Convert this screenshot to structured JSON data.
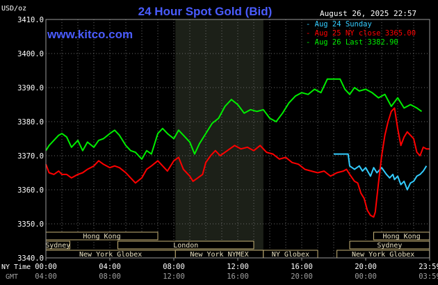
{
  "chart_data": {
    "type": "line",
    "title": "24 Hour Spot Gold (Bid)",
    "source": "www.kitco.com",
    "date_label": "August 26, 2025 22:57",
    "ylabel": "USD/oz",
    "ylim": [
      3340,
      3410
    ],
    "yticks": [
      3340,
      3350,
      3360,
      3370,
      3380,
      3390,
      3400,
      3410
    ],
    "ytick_labels": [
      "3340.0",
      "3350.0",
      "3360.0",
      "3370.0",
      "3380.0",
      "3390.0",
      "3400.0",
      "3410.0"
    ],
    "xlim": [
      0,
      24
    ],
    "xticks": [
      0,
      4,
      8,
      12,
      16,
      20,
      24
    ],
    "xtick_labels_ny": [
      "00:00",
      "04:00",
      "08:00",
      "12:00",
      "16:00",
      "20:00",
      "23:59"
    ],
    "xtick_labels_gmt": [
      "04:00",
      "08:00",
      "12:00",
      "16:00",
      "20:00",
      "00:00",
      "03:59"
    ],
    "xaxis_row_labels": [
      "NY Time",
      "GMT"
    ],
    "grid": true,
    "legend_position": "top-right",
    "highlight_band": [
      8.1,
      13.6
    ],
    "series": [
      {
        "name": "Aug 24 Sunday",
        "color": "#33ccff",
        "x": [
          18.0,
          18.6,
          18.9,
          19.0,
          19.3,
          19.6,
          19.8,
          20.0,
          20.3,
          20.5,
          20.7,
          21.0,
          21.3,
          21.5,
          21.7,
          21.8,
          22.0,
          22.2,
          22.4,
          22.6,
          22.8,
          23.0,
          23.2,
          23.4,
          23.6,
          23.8
        ],
        "y": [
          3370.5,
          3370.5,
          3370.5,
          3367.0,
          3366.0,
          3367.0,
          3365.5,
          3366.5,
          3364.0,
          3366.5,
          3365.0,
          3366.5,
          3364.5,
          3363.5,
          3364.5,
          3363.0,
          3364.0,
          3361.5,
          3362.5,
          3360.0,
          3362.0,
          3362.5,
          3364.0,
          3364.5,
          3365.5,
          3367.0
        ]
      },
      {
        "name": "Aug 25 NY close 3365.00",
        "color": "#ff0000",
        "x": [
          0.0,
          0.2,
          0.5,
          0.8,
          1.0,
          1.3,
          1.6,
          2.0,
          2.3,
          2.6,
          3.0,
          3.3,
          3.6,
          4.0,
          4.3,
          4.6,
          5.0,
          5.3,
          5.6,
          6.0,
          6.3,
          6.6,
          7.0,
          7.3,
          7.6,
          8.0,
          8.3,
          8.6,
          9.0,
          9.2,
          9.5,
          9.8,
          10.0,
          10.3,
          10.6,
          10.9,
          11.2,
          11.5,
          11.8,
          12.2,
          12.6,
          13.0,
          13.4,
          13.8,
          14.2,
          14.6,
          15.0,
          15.4,
          15.8,
          16.2,
          16.6,
          17.0,
          17.4,
          17.8,
          18.2,
          18.6,
          18.8,
          19.0,
          19.3,
          19.5,
          19.7,
          19.9,
          20.1,
          20.3,
          20.5,
          20.6,
          20.8,
          21.0,
          21.2,
          21.4,
          21.6,
          21.8,
          22.0,
          22.2,
          22.4,
          22.6,
          22.8,
          23.0,
          23.2,
          23.4,
          23.6,
          23.8,
          23.99
        ],
        "y": [
          3367.5,
          3365.0,
          3364.5,
          3365.5,
          3364.5,
          3364.5,
          3363.5,
          3364.5,
          3365.0,
          3366.0,
          3367.0,
          3368.5,
          3367.5,
          3366.5,
          3367.0,
          3366.5,
          3365.0,
          3363.5,
          3362.0,
          3363.5,
          3366.0,
          3367.0,
          3368.5,
          3367.0,
          3365.5,
          3368.5,
          3369.5,
          3366.0,
          3364.0,
          3362.5,
          3363.5,
          3364.5,
          3368.0,
          3370.0,
          3371.5,
          3370.0,
          3371.0,
          3372.0,
          3373.0,
          3372.0,
          3372.5,
          3371.5,
          3373.0,
          3371.0,
          3370.5,
          3369.0,
          3369.5,
          3368.0,
          3367.5,
          3366.0,
          3365.5,
          3365.0,
          3365.5,
          3364.0,
          3365.0,
          3365.5,
          3366.0,
          3364.5,
          3362.5,
          3362.0,
          3359.0,
          3357.5,
          3354.0,
          3352.5,
          3352.0,
          3353.5,
          3362.0,
          3370.0,
          3376.0,
          3380.0,
          3383.0,
          3384.0,
          3378.0,
          3373.0,
          3375.5,
          3377.0,
          3376.0,
          3375.0,
          3371.0,
          3370.0,
          3372.5,
          3372.0,
          3372.0
        ]
      },
      {
        "name": "Aug 26 Last 3382.90",
        "color": "#00ee00",
        "x": [
          0.0,
          0.2,
          0.5,
          0.8,
          1.0,
          1.3,
          1.6,
          2.0,
          2.3,
          2.6,
          3.0,
          3.3,
          3.6,
          4.0,
          4.3,
          4.6,
          5.0,
          5.3,
          5.6,
          6.0,
          6.3,
          6.6,
          7.0,
          7.3,
          7.6,
          8.0,
          8.3,
          8.6,
          9.0,
          9.3,
          9.6,
          10.0,
          10.4,
          10.8,
          11.2,
          11.6,
          12.0,
          12.4,
          12.8,
          13.2,
          13.6,
          14.0,
          14.4,
          14.8,
          15.2,
          15.6,
          16.0,
          16.4,
          16.8,
          17.2,
          17.6,
          18.0,
          18.4,
          18.7,
          19.0,
          19.3,
          19.6,
          20.0,
          20.4,
          20.8,
          21.2,
          21.6,
          22.0,
          22.4,
          22.8,
          23.2,
          23.5
        ],
        "y": [
          3371.5,
          3373.0,
          3374.5,
          3376.0,
          3376.5,
          3375.5,
          3372.5,
          3374.5,
          3371.5,
          3374.0,
          3372.5,
          3374.5,
          3375.0,
          3376.5,
          3377.5,
          3376.0,
          3373.0,
          3371.5,
          3371.0,
          3369.0,
          3371.5,
          3370.5,
          3376.5,
          3378.0,
          3376.5,
          3375.0,
          3377.5,
          3376.0,
          3374.0,
          3370.5,
          3373.5,
          3376.5,
          3379.5,
          3381.0,
          3384.5,
          3386.5,
          3385.0,
          3382.5,
          3383.5,
          3383.0,
          3383.5,
          3381.0,
          3380.0,
          3382.5,
          3385.5,
          3387.5,
          3388.5,
          3388.0,
          3389.5,
          3388.5,
          3392.5,
          3392.5,
          3392.5,
          3389.5,
          3388.0,
          3390.0,
          3389.0,
          3389.5,
          3388.5,
          3387.0,
          3388.0,
          3384.5,
          3387.0,
          3384.0,
          3385.0,
          3384.0,
          3383.0
        ]
      }
    ],
    "sessions": [
      {
        "label": "Hong Kong",
        "start": 0.0,
        "end": 7.0,
        "row": 0
      },
      {
        "label": "Sydney",
        "start": 0.0,
        "end": 1.5,
        "row": 1
      },
      {
        "label": "London",
        "start": 4.5,
        "end": 13.0,
        "row": 1
      },
      {
        "label": "New York Globex",
        "start": 0.0,
        "end": 8.1,
        "row": 2
      },
      {
        "label": "New York NYMEX",
        "start": 8.1,
        "end": 13.6,
        "row": 2
      },
      {
        "label": "NY Globex",
        "start": 13.6,
        "end": 17.0,
        "row": 2
      },
      {
        "label": "Hong Kong",
        "start": 20.5,
        "end": 23.99,
        "row": 0
      },
      {
        "label": "Sydney",
        "start": 19.0,
        "end": 23.99,
        "row": 1
      },
      {
        "label": "New York Globex",
        "start": 18.2,
        "end": 23.99,
        "row": 2
      }
    ]
  }
}
